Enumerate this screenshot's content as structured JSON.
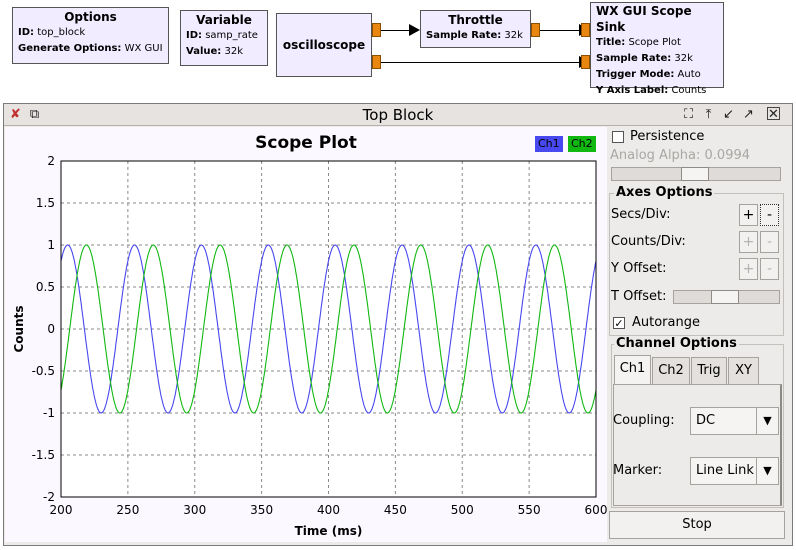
{
  "flowgraph": {
    "options": {
      "title": "Options",
      "id_label": "ID:",
      "id_value": "top_block",
      "gen_label": "Generate Options:",
      "gen_value": "WX GUI"
    },
    "variable": {
      "title": "Variable",
      "id_label": "ID:",
      "id_value": "samp_rate",
      "value_label": "Value:",
      "value_value": "32k"
    },
    "oscilloscope": {
      "title": "oscilloscope"
    },
    "throttle": {
      "title": "Throttle",
      "rate_label": "Sample Rate:",
      "rate_value": "32k"
    },
    "scope_sink": {
      "title": "WX GUI Scope Sink",
      "title_label": "Title:",
      "title_value": "Scope Plot",
      "rate_label": "Sample Rate:",
      "rate_value": "32k",
      "trigger_label": "Trigger Mode:",
      "trigger_value": "Auto",
      "yaxis_label": "Y Axis Label:",
      "yaxis_value": "Counts"
    }
  },
  "window": {
    "title": "Top Block"
  },
  "plot": {
    "title": "Scope Plot",
    "legend": [
      {
        "name": "Ch1",
        "color": "#4848f0"
      },
      {
        "name": "Ch2",
        "color": "#12b812"
      }
    ],
    "xlabel": "Time (ms)",
    "ylabel": "Counts",
    "xticks": [
      "200",
      "250",
      "300",
      "350",
      "400",
      "450",
      "500",
      "550",
      "600"
    ],
    "yticks": [
      "2",
      "1.5",
      "1",
      "0.5",
      "0",
      "-0.5",
      "-1",
      "-1.5",
      "-2"
    ]
  },
  "chart_data": {
    "type": "line",
    "title": "Scope Plot",
    "xlabel": "Time (ms)",
    "ylabel": "Counts",
    "xlim": [
      200,
      600
    ],
    "ylim": [
      -2,
      2
    ],
    "grid": true,
    "series": [
      {
        "name": "Ch1",
        "color": "#4848f0",
        "function": "sine",
        "amplitude": 1,
        "period_ms": 50,
        "phase_x_of_peak_ms": 205
      },
      {
        "name": "Ch2",
        "color": "#12b812",
        "function": "sine",
        "amplitude": 1,
        "period_ms": 50,
        "phase_x_of_peak_ms": 219
      }
    ]
  },
  "controls": {
    "persistence_label": "Persistence",
    "analog_alpha_label": "Analog Alpha: 0.0994",
    "analog_alpha_value": 0.0994,
    "axes_title": "Axes Options",
    "secs_div_label": "Secs/Div:",
    "counts_div_label": "Counts/Div:",
    "y_offset_label": "Y Offset:",
    "t_offset_label": "T Offset:",
    "t_offset_fraction": 0.45,
    "plus": "+",
    "minus": "-",
    "autorange_label": "Autorange",
    "channel_title": "Channel Options",
    "tabs": [
      "Ch1",
      "Ch2",
      "Trig",
      "XY"
    ],
    "coupling_label": "Coupling:",
    "coupling_value": "DC",
    "marker_label": "Marker:",
    "marker_value": "Line Link",
    "stop_label": "Stop"
  }
}
